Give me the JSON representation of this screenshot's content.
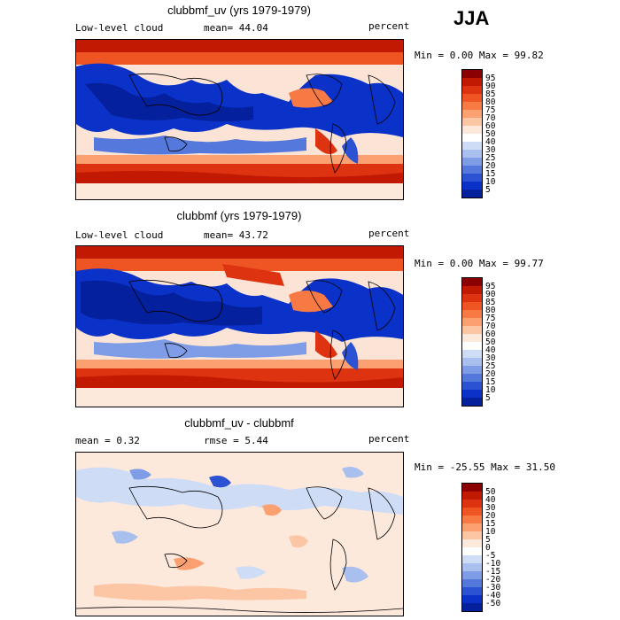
{
  "season": "JJA",
  "panels": [
    {
      "title": "clubbmf_uv (yrs 1979-1979)",
      "left_label": "Low-level cloud",
      "center_label": "mean=  44.04",
      "right_label": "percent",
      "stats": "Min =   0.00 Max =  99.82",
      "colorbar": {
        "labels": [
          "95",
          "90",
          "85",
          "80",
          "75",
          "70",
          "60",
          "50",
          "40",
          "30",
          "25",
          "20",
          "15",
          "10",
          "5"
        ],
        "colors": [
          "#8b0000",
          "#c21a02",
          "#dd3311",
          "#ee5522",
          "#f77a45",
          "#fba070",
          "#fcc5a3",
          "#fde9dc",
          "#ffffff",
          "#cfdcf6",
          "#a9c0ef",
          "#7f9ce6",
          "#5578dc",
          "#2a52d3",
          "#0a32c8",
          "#05209c"
        ]
      }
    },
    {
      "title": "clubbmf (yrs 1979-1979)",
      "left_label": "Low-level cloud",
      "center_label": "mean=  43.72",
      "right_label": "percent",
      "stats": "Min =   0.00 Max =  99.77",
      "colorbar": {
        "labels": [
          "95",
          "90",
          "85",
          "80",
          "75",
          "70",
          "60",
          "50",
          "40",
          "30",
          "25",
          "20",
          "15",
          "10",
          "5"
        ],
        "colors": [
          "#8b0000",
          "#c21a02",
          "#dd3311",
          "#ee5522",
          "#f77a45",
          "#fba070",
          "#fcc5a3",
          "#fde9dc",
          "#ffffff",
          "#cfdcf6",
          "#a9c0ef",
          "#7f9ce6",
          "#5578dc",
          "#2a52d3",
          "#0a32c8",
          "#05209c"
        ]
      }
    },
    {
      "title": "clubbmf_uv - clubbmf",
      "left_label": "mean =   0.32",
      "center_label": "rmse =   5.44",
      "right_label": "percent",
      "stats": "Min = -25.55 Max =  31.50",
      "colorbar": {
        "labels": [
          "50",
          "40",
          "30",
          "20",
          "15",
          "10",
          "5",
          "0",
          "-5",
          "-10",
          "-15",
          "-20",
          "-30",
          "-40",
          "-50"
        ],
        "colors": [
          "#8b0000",
          "#c21a02",
          "#dd3311",
          "#ee5522",
          "#f77a45",
          "#fba070",
          "#fcc5a3",
          "#fde9dc",
          "#ffffff",
          "#cfdcf6",
          "#a9c0ef",
          "#7f9ce6",
          "#5578dc",
          "#2a52d3",
          "#0a32c8",
          "#05209c"
        ]
      }
    }
  ]
}
